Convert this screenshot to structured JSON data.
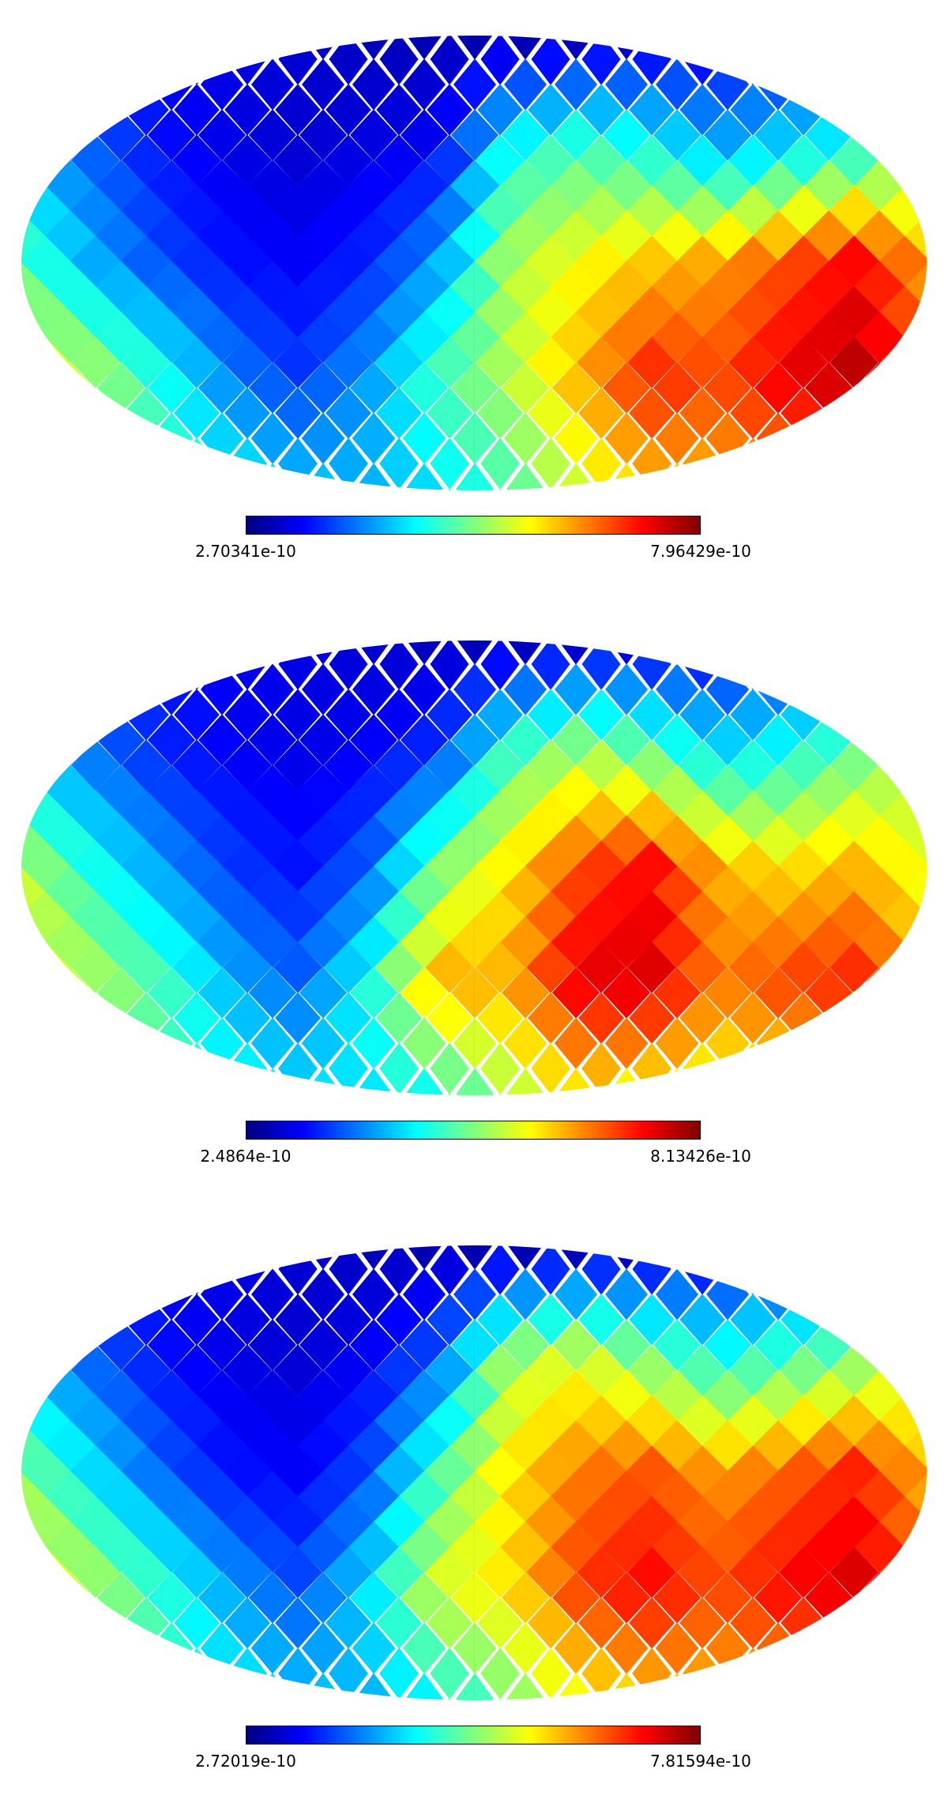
{
  "colormap": [
    "#00007f",
    "#0000ff",
    "#007fff",
    "#00ffff",
    "#7fff7f",
    "#ffff00",
    "#ff7f00",
    "#ff0000",
    "#7f0000"
  ],
  "chart_data": [
    {
      "type": "heatmap",
      "projection": "mollweide",
      "colorbar": {
        "min_label": "2.70341e-10",
        "max_label": "7.96429e-10",
        "vmin": 2.70341e-10,
        "vmax": 7.96429e-10
      },
      "grid": [
        [
          0.2,
          0.16,
          0.12,
          0.1,
          0.08,
          0.06,
          0.05,
          0.05,
          0.06,
          0.08,
          0.1,
          0.13,
          0.17,
          0.22
        ],
        [
          0.3,
          0.22,
          0.14,
          0.1,
          0.08,
          0.1,
          0.12,
          0.4,
          0.45,
          0.4,
          0.3,
          0.35,
          0.4,
          0.45
        ],
        [
          0.45,
          0.3,
          0.2,
          0.14,
          0.12,
          0.16,
          0.28,
          0.55,
          0.62,
          0.68,
          0.72,
          0.8,
          0.88,
          0.72
        ],
        [
          0.68,
          0.55,
          0.4,
          0.25,
          0.18,
          0.28,
          0.45,
          0.55,
          0.7,
          0.85,
          0.8,
          0.9,
          0.95,
          0.8
        ],
        [
          0.65,
          0.55,
          0.45,
          0.38,
          0.32,
          0.3,
          0.35,
          0.45,
          0.58,
          0.68,
          0.7,
          0.72,
          0.7,
          0.65
        ]
      ]
    },
    {
      "type": "heatmap",
      "projection": "mollweide",
      "colorbar": {
        "min_label": "2.4864e-10",
        "max_label": "8.13426e-10",
        "vmin": 2.4864e-10,
        "vmax": 8.13426e-10
      },
      "grid": [
        [
          0.22,
          0.18,
          0.14,
          0.12,
          0.1,
          0.08,
          0.06,
          0.06,
          0.08,
          0.1,
          0.12,
          0.15,
          0.18,
          0.24
        ],
        [
          0.32,
          0.24,
          0.16,
          0.12,
          0.1,
          0.12,
          0.18,
          0.45,
          0.55,
          0.48,
          0.35,
          0.4,
          0.48,
          0.55
        ],
        [
          0.55,
          0.4,
          0.28,
          0.18,
          0.14,
          0.22,
          0.5,
          0.65,
          0.8,
          0.88,
          0.7,
          0.65,
          0.7,
          0.6
        ],
        [
          0.65,
          0.55,
          0.45,
          0.3,
          0.22,
          0.4,
          0.72,
          0.7,
          0.9,
          0.92,
          0.75,
          0.82,
          0.85,
          0.7
        ],
        [
          0.6,
          0.52,
          0.45,
          0.4,
          0.35,
          0.35,
          0.4,
          0.55,
          0.65,
          0.62,
          0.6,
          0.62,
          0.6,
          0.55
        ]
      ]
    },
    {
      "type": "heatmap",
      "projection": "mollweide",
      "colorbar": {
        "min_label": "2.72019e-10",
        "max_label": "7.81594e-10",
        "vmin": 2.72019e-10,
        "vmax": 7.81594e-10
      },
      "grid": [
        [
          0.2,
          0.16,
          0.12,
          0.1,
          0.08,
          0.06,
          0.05,
          0.05,
          0.06,
          0.08,
          0.1,
          0.13,
          0.17,
          0.22
        ],
        [
          0.3,
          0.22,
          0.14,
          0.1,
          0.08,
          0.12,
          0.22,
          0.55,
          0.6,
          0.5,
          0.4,
          0.45,
          0.5,
          0.55
        ],
        [
          0.5,
          0.35,
          0.22,
          0.14,
          0.12,
          0.2,
          0.45,
          0.65,
          0.75,
          0.8,
          0.72,
          0.78,
          0.85,
          0.7
        ],
        [
          0.68,
          0.55,
          0.42,
          0.28,
          0.2,
          0.35,
          0.6,
          0.65,
          0.82,
          0.88,
          0.8,
          0.88,
          0.92,
          0.78
        ],
        [
          0.62,
          0.52,
          0.45,
          0.38,
          0.32,
          0.3,
          0.38,
          0.5,
          0.62,
          0.68,
          0.7,
          0.7,
          0.68,
          0.62
        ]
      ]
    }
  ]
}
